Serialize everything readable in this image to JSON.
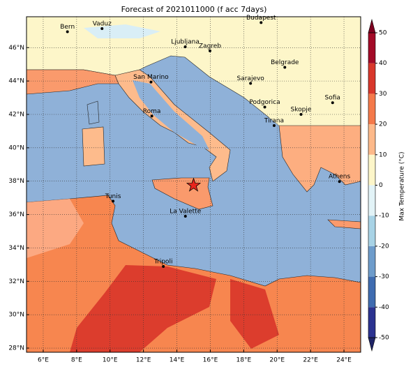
{
  "chart_data": {
    "type": "map",
    "title": "Forecast of 2021011000 (f acc 7days)",
    "xlim": [
      5,
      25
    ],
    "ylim": [
      27.75,
      47.85
    ],
    "xticks": [
      {
        "value": 6,
        "label": "6°E"
      },
      {
        "value": 8,
        "label": "8°E"
      },
      {
        "value": 10,
        "label": "10°E"
      },
      {
        "value": 12,
        "label": "12°E"
      },
      {
        "value": 14,
        "label": "14°E"
      },
      {
        "value": 16,
        "label": "16°E"
      },
      {
        "value": 18,
        "label": "18°E"
      },
      {
        "value": 20,
        "label": "20°E"
      },
      {
        "value": 22,
        "label": "22°E"
      },
      {
        "value": 24,
        "label": "24°E"
      }
    ],
    "yticks": [
      {
        "value": 28,
        "label": "28°N"
      },
      {
        "value": 30,
        "label": "30°N"
      },
      {
        "value": 32,
        "label": "32°N"
      },
      {
        "value": 34,
        "label": "34°N"
      },
      {
        "value": 36,
        "label": "36°N"
      },
      {
        "value": 38,
        "label": "38°N"
      },
      {
        "value": 40,
        "label": "40°N"
      },
      {
        "value": 42,
        "label": "42°N"
      },
      {
        "value": 44,
        "label": "44°N"
      },
      {
        "value": 46,
        "label": "46°N"
      }
    ],
    "grid": true,
    "cities": [
      {
        "name": "Bern",
        "lon": 7.45,
        "lat": 46.95
      },
      {
        "name": "Vaduz",
        "lon": 9.52,
        "lat": 47.14
      },
      {
        "name": "Budapest",
        "lon": 19.04,
        "lat": 47.5
      },
      {
        "name": "Ljubljana",
        "lon": 14.5,
        "lat": 46.05
      },
      {
        "name": "Zagreb",
        "lon": 15.98,
        "lat": 45.81
      },
      {
        "name": "Belgrade",
        "lon": 20.46,
        "lat": 44.82
      },
      {
        "name": "San Marino",
        "lon": 12.45,
        "lat": 43.94
      },
      {
        "name": "Sarajevo",
        "lon": 18.41,
        "lat": 43.86
      },
      {
        "name": "Sofia",
        "lon": 23.32,
        "lat": 42.7
      },
      {
        "name": "Roma",
        "lon": 12.5,
        "lat": 41.9
      },
      {
        "name": "Podgorica",
        "lon": 19.26,
        "lat": 42.44
      },
      {
        "name": "Skopje",
        "lon": 21.43,
        "lat": 42.0
      },
      {
        "name": "Tirana",
        "lon": 19.82,
        "lat": 41.33
      },
      {
        "name": "Athens",
        "lon": 23.73,
        "lat": 37.98
      },
      {
        "name": "Tunis",
        "lon": 10.18,
        "lat": 36.8
      },
      {
        "name": "La Valette",
        "lon": 14.51,
        "lat": 35.9
      },
      {
        "name": "Tripoli",
        "lon": 13.19,
        "lat": 32.89
      }
    ],
    "marker": {
      "lon": 15.0,
      "lat": 37.75,
      "color": "#e8251c"
    },
    "colorbar": {
      "label": "Max Temperature (°C)",
      "ticks": [
        -50,
        -40,
        -30,
        -20,
        -10,
        0,
        10,
        20,
        30,
        40,
        50
      ],
      "colors": [
        "#2b3290",
        "#3f6cb0",
        "#6e9ccb",
        "#a8d3e6",
        "#e2f3f7",
        "#fdf6c9",
        "#fdb98a",
        "#f4794a",
        "#d8372b",
        "#a30a27"
      ],
      "under": "#1f2466",
      "over": "#7e0020"
    }
  }
}
